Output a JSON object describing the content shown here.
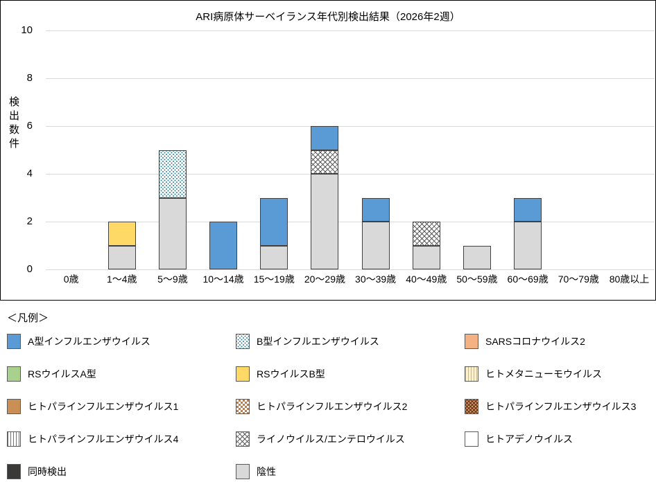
{
  "chart_data": {
    "type": "bar",
    "stacked": true,
    "title": "ARI病原体サーベイランス年代別検出結果（2026年2週）",
    "ylabel": "検出数件",
    "xlabel": "",
    "ylim": [
      0,
      10
    ],
    "yticks": [
      0,
      2,
      4,
      6,
      8,
      10
    ],
    "grid": "horizontal",
    "categories": [
      "0歳",
      "1～4歳",
      "5～9歳",
      "10～14歳",
      "15～19歳",
      "20～29歳",
      "30～39歳",
      "40～49歳",
      "50～59歳",
      "60～69歳",
      "70～79歳",
      "80歳以上"
    ],
    "bars": [
      {
        "category": "0歳",
        "segments": []
      },
      {
        "category": "1～4歳",
        "segments": [
          {
            "series": "陰性",
            "key": "negative",
            "value": 1
          },
          {
            "series": "RSウイルスB型",
            "key": "rsv-b",
            "value": 1
          }
        ]
      },
      {
        "category": "5～9歳",
        "segments": [
          {
            "series": "陰性",
            "key": "negative",
            "value": 3
          },
          {
            "series": "B型インフルエンザウイルス",
            "key": "flu-b",
            "value": 2
          }
        ]
      },
      {
        "category": "10～14歳",
        "segments": [
          {
            "series": "A型インフルエンザウイルス",
            "key": "flu-a",
            "value": 2
          }
        ]
      },
      {
        "category": "15～19歳",
        "segments": [
          {
            "series": "陰性",
            "key": "negative",
            "value": 1
          },
          {
            "series": "A型インフルエンザウイルス",
            "key": "flu-a",
            "value": 2
          }
        ]
      },
      {
        "category": "20～29歳",
        "segments": [
          {
            "series": "陰性",
            "key": "negative",
            "value": 4
          },
          {
            "series": "ライノウイルス/エンテロウイルス",
            "key": "rhino-entero",
            "value": 1
          },
          {
            "series": "A型インフルエンザウイルス",
            "key": "flu-a",
            "value": 1
          }
        ]
      },
      {
        "category": "30～39歳",
        "segments": [
          {
            "series": "陰性",
            "key": "negative",
            "value": 2
          },
          {
            "series": "A型インフルエンザウイルス",
            "key": "flu-a",
            "value": 1
          }
        ]
      },
      {
        "category": "40～49歳",
        "segments": [
          {
            "series": "陰性",
            "key": "negative",
            "value": 1
          },
          {
            "series": "ライノウイルス/エンテロウイルス",
            "key": "rhino-entero",
            "value": 1
          }
        ]
      },
      {
        "category": "50～59歳",
        "segments": [
          {
            "series": "陰性",
            "key": "negative",
            "value": 1
          }
        ]
      },
      {
        "category": "60～69歳",
        "segments": [
          {
            "series": "陰性",
            "key": "negative",
            "value": 2
          },
          {
            "series": "A型インフルエンザウイルス",
            "key": "flu-a",
            "value": 1
          }
        ]
      },
      {
        "category": "70～79歳",
        "segments": []
      },
      {
        "category": "80歳以上",
        "segments": []
      }
    ]
  },
  "legend": {
    "title": "＜凡例＞",
    "items": [
      {
        "key": "flu-a",
        "label": "A型インフルエンザウイルス"
      },
      {
        "key": "flu-b",
        "label": "B型インフルエンザウイルス"
      },
      {
        "key": "sars-cov-2",
        "label": "SARSコロナウイルス2"
      },
      {
        "key": "rsv-a",
        "label": "RSウイルスA型"
      },
      {
        "key": "rsv-b",
        "label": "RSウイルスB型"
      },
      {
        "key": "hmpv",
        "label": "ヒトメタニューモウイルス"
      },
      {
        "key": "piv-1",
        "label": "ヒトパラインフルエンザウイルス1"
      },
      {
        "key": "piv-2",
        "label": "ヒトパラインフルエンザウイルス2"
      },
      {
        "key": "piv-3",
        "label": "ヒトパラインフルエンザウイルス3"
      },
      {
        "key": "piv-4",
        "label": "ヒトパラインフルエンザウイルス4"
      },
      {
        "key": "rhino-entero",
        "label": "ライノウイルス/エンテロウイルス"
      },
      {
        "key": "adeno",
        "label": "ヒトアデノウイルス"
      },
      {
        "key": "codetect",
        "label": "同時検出"
      },
      {
        "key": "negative",
        "label": "陰性"
      }
    ]
  },
  "swatches": {
    "flu-a": {
      "type": "solid",
      "color": "#5B9BD5"
    },
    "flu-b": {
      "type": "dots",
      "color": "#31859C",
      "base": "#FFFFFF"
    },
    "sars-cov-2": {
      "type": "solid",
      "color": "#F4B183"
    },
    "rsv-a": {
      "type": "solid",
      "color": "#A9D18E"
    },
    "rsv-b": {
      "type": "solid",
      "color": "#FFD966"
    },
    "hmpv": {
      "type": "vstripes",
      "color": "#D6B656",
      "base": "#FFF2CC"
    },
    "piv-1": {
      "type": "solid",
      "color": "#C98F54"
    },
    "piv-2": {
      "type": "checker",
      "color": "#BE7D4B",
      "base": "#FFFFFF"
    },
    "piv-3": {
      "type": "dots",
      "color": "#E8C49C",
      "base": "#7B3E19"
    },
    "piv-4": {
      "type": "vstripes",
      "color": "#A6642A",
      "base": "#FFFFFF"
    },
    "rhino-entero": {
      "type": "crosshatch",
      "color": "#595959",
      "base": "#FFFFFF"
    },
    "adeno": {
      "type": "solid",
      "color": "#FFFFFF"
    },
    "codetect": {
      "type": "solid",
      "color": "#3B3838"
    },
    "negative": {
      "type": "solid",
      "color": "#D9D9D9"
    },
    "gridline_color": "#D9D9D9",
    "bar_border_color": "#404040"
  }
}
